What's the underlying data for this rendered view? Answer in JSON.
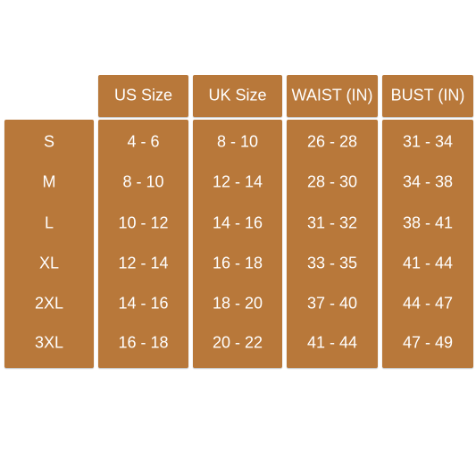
{
  "table": {
    "headers": [
      "US Size",
      "UK Size",
      "WAIST (IN)",
      "BUST (IN)"
    ],
    "rows": [
      [
        "S",
        "4 - 6",
        "8 - 10",
        "26 - 28",
        "31 - 34"
      ],
      [
        "M",
        "8 - 10",
        "12 - 14",
        "28 - 30",
        "34 - 38"
      ],
      [
        "L",
        "10 - 12",
        "14 - 16",
        "31 - 32",
        "38 - 41"
      ],
      [
        "XL",
        "12 - 14",
        "16 - 18",
        "33 - 35",
        "41 - 44"
      ],
      [
        "2XL",
        "14 - 16",
        "18 - 20",
        "37 - 40",
        "44 - 47"
      ],
      [
        "3XL",
        "16 - 18",
        "20 - 22",
        "41 - 44",
        "47 - 49"
      ]
    ]
  }
}
